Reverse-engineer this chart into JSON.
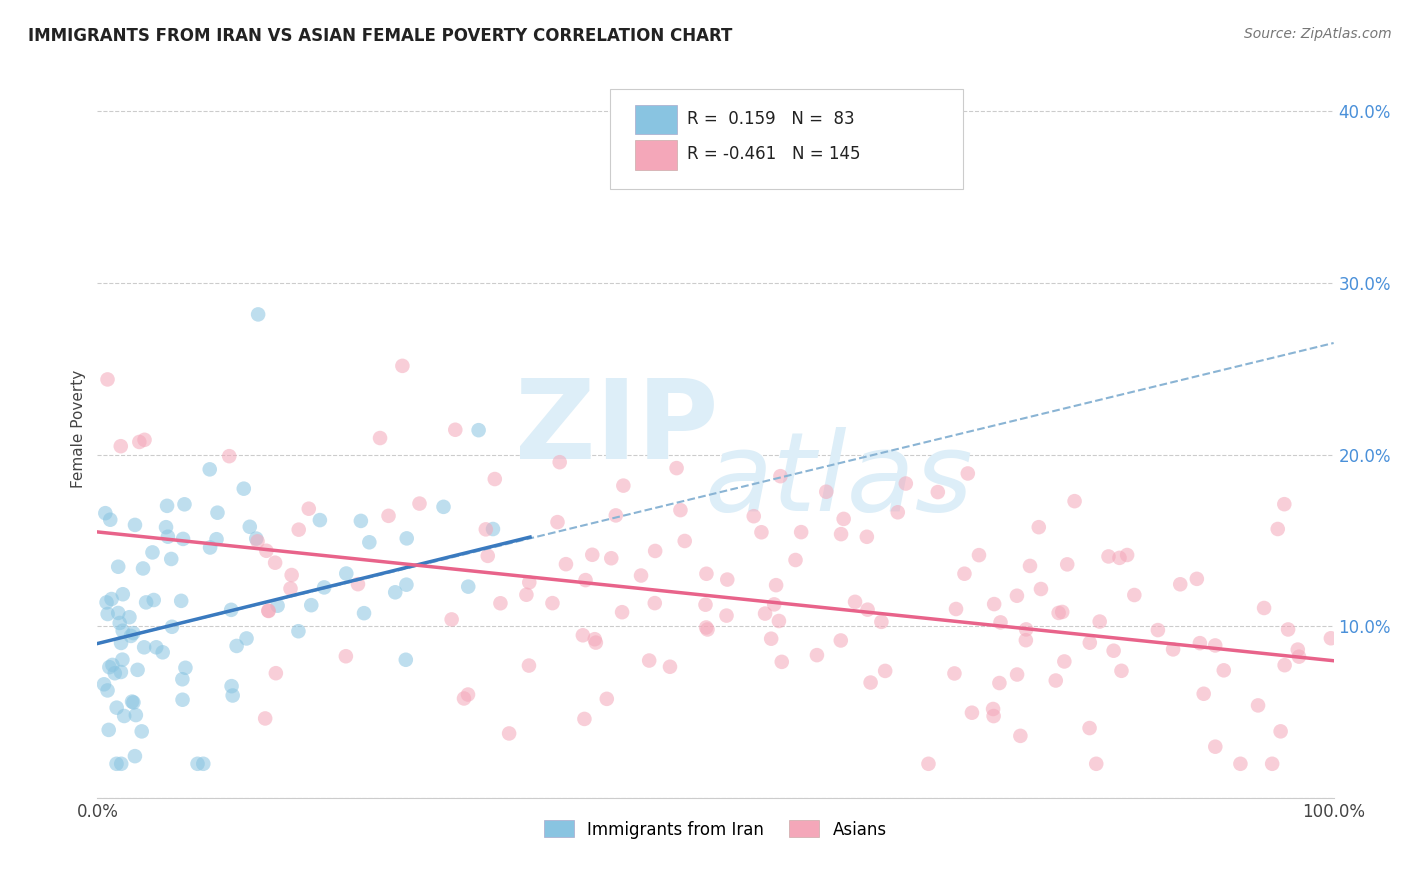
{
  "title": "IMMIGRANTS FROM IRAN VS ASIAN FEMALE POVERTY CORRELATION CHART",
  "source": "Source: ZipAtlas.com",
  "ylabel": "Female Poverty",
  "xlim": [
    0.0,
    1.0
  ],
  "ylim": [
    0.0,
    0.43
  ],
  "blue_R": 0.159,
  "blue_N": 83,
  "pink_R": -0.461,
  "pink_N": 145,
  "blue_color": "#89c4e1",
  "pink_color": "#f4a7b9",
  "blue_line_color": "#3a7abf",
  "pink_line_color": "#e8638a",
  "dashed_line_color": "#8ab4d4",
  "background_color": "#ffffff",
  "legend_label_blue": "Immigrants from Iran",
  "legend_label_pink": "Asians",
  "blue_line_x0": 0.0,
  "blue_line_y0": 0.09,
  "blue_line_x1": 0.35,
  "blue_line_y1": 0.152,
  "dash_line_x0": 0.0,
  "dash_line_y0": 0.09,
  "dash_line_x1": 1.0,
  "dash_line_y1": 0.265,
  "pink_line_x0": 0.0,
  "pink_line_y0": 0.155,
  "pink_line_x1": 1.0,
  "pink_line_y1": 0.08,
  "blue_marker_size": 110,
  "pink_marker_size": 110,
  "blue_alpha": 0.55,
  "pink_alpha": 0.55
}
